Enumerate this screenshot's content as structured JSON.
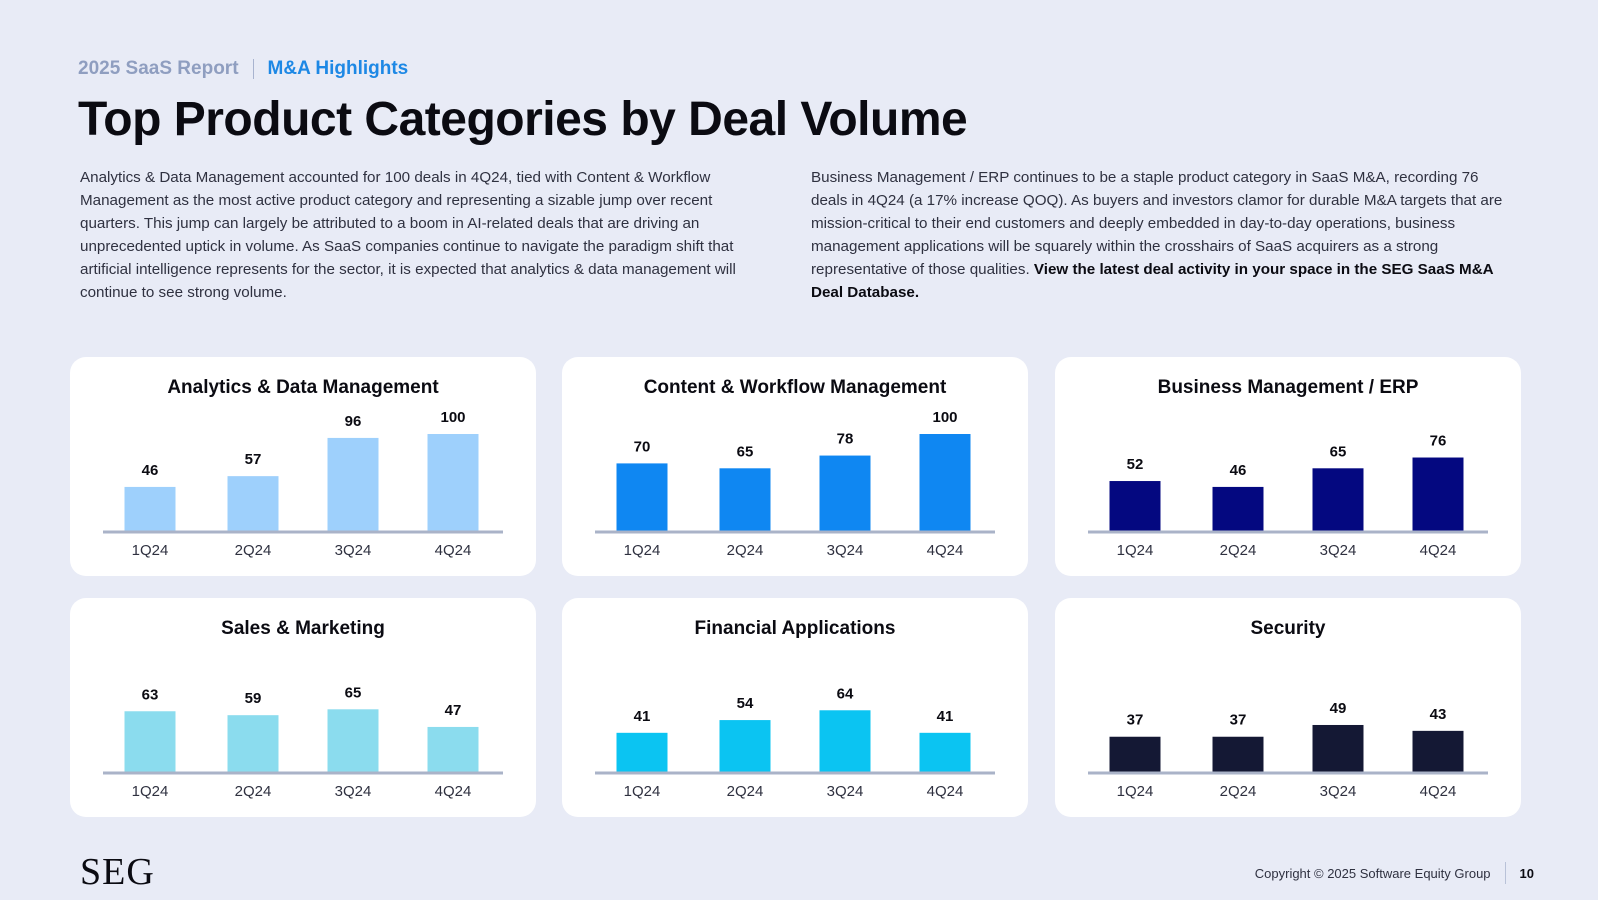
{
  "header": {
    "report": "2025 SaaS Report",
    "section": "M&A Highlights"
  },
  "title": "Top Product Categories by Deal Volume",
  "intro": {
    "left": "Analytics & Data Management accounted for 100 deals in 4Q24, tied with Content & Workflow Management as the most active product category and representing a sizable jump over recent quarters. This jump can largely be attributed to a boom in AI-related deals that are driving an unprecedented uptick in volume. As SaaS companies continue to navigate the paradigm shift that artificial intelligence represents for the sector, it is expected that analytics & data management will continue to see strong volume.",
    "right": "Business Management / ERP continues to be a staple product category in SaaS M&A, recording 76 deals in 4Q24 (a 17% increase QOQ). As buyers and investors clamor for durable M&A targets that are mission-critical to their end customers and deeply embedded in day-to-day operations, business management applications will be squarely within the crosshairs of SaaS acquirers as a strong representative of those qualities.",
    "right_bold": "View the latest deal activity in your space in the SEG SaaS M&A Deal Database."
  },
  "chart_data": [
    {
      "type": "bar",
      "title": "Analytics & Data Management",
      "categories": [
        "1Q24",
        "2Q24",
        "3Q24",
        "4Q24"
      ],
      "values": [
        46,
        57,
        96,
        100
      ],
      "ylim": [
        0,
        100
      ],
      "color": "#9ed0fc"
    },
    {
      "type": "bar",
      "title": "Content & Workflow Management",
      "categories": [
        "1Q24",
        "2Q24",
        "3Q24",
        "4Q24"
      ],
      "values": [
        70,
        65,
        78,
        100
      ],
      "ylim": [
        0,
        100
      ],
      "color": "#0f87f2"
    },
    {
      "type": "bar",
      "title": "Business Management / ERP",
      "categories": [
        "1Q24",
        "2Q24",
        "3Q24",
        "4Q24"
      ],
      "values": [
        52,
        46,
        65,
        76
      ],
      "ylim": [
        0,
        100
      ],
      "color": "#040880"
    },
    {
      "type": "bar",
      "title": "Sales & Marketing",
      "categories": [
        "1Q24",
        "2Q24",
        "3Q24",
        "4Q24"
      ],
      "values": [
        63,
        59,
        65,
        47
      ],
      "ylim": [
        0,
        100
      ],
      "color": "#8bdcee"
    },
    {
      "type": "bar",
      "title": "Financial Applications",
      "categories": [
        "1Q24",
        "2Q24",
        "3Q24",
        "4Q24"
      ],
      "values": [
        41,
        54,
        64,
        41
      ],
      "ylim": [
        0,
        100
      ],
      "color": "#0bc4f2"
    },
    {
      "type": "bar",
      "title": "Security",
      "categories": [
        "1Q24",
        "2Q24",
        "3Q24",
        "4Q24"
      ],
      "values": [
        37,
        37,
        49,
        43
      ],
      "ylim": [
        0,
        100
      ],
      "color": "#141834"
    }
  ],
  "footer": {
    "logo": "SEG",
    "copyright": "Copyright © 2025 Software Equity Group",
    "page": "10"
  }
}
